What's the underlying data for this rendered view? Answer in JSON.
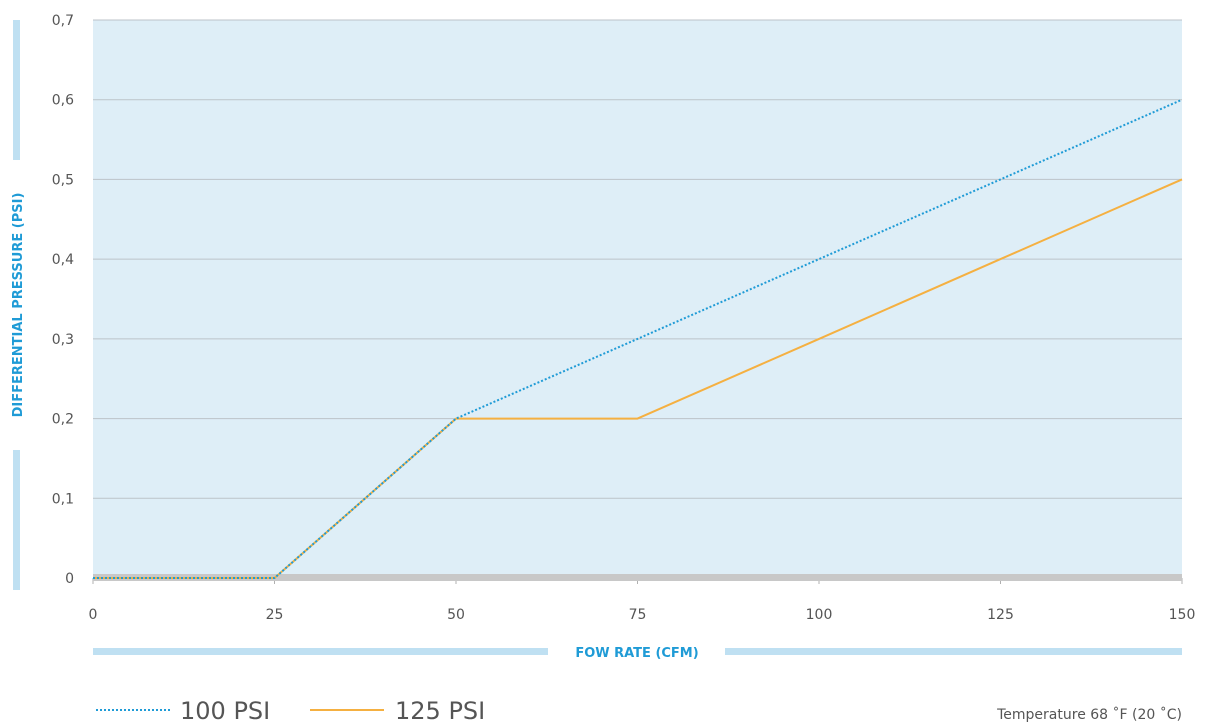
{
  "chart_data": {
    "type": "line",
    "xlabel": "FOW RATE (CFM)",
    "ylabel": "DIFFERENTIAL PRESSURE (PSI)",
    "xlim": [
      0,
      150
    ],
    "ylim": [
      0,
      0.7
    ],
    "x_ticks": [
      "0",
      "25",
      "50",
      "75",
      "100",
      "125",
      "150"
    ],
    "y_ticks": [
      "0",
      "0,1",
      "0,2",
      "0,3",
      "0,4",
      "0,5",
      "0,6",
      "0,7"
    ],
    "grid": true,
    "legend_position": "bottom-left",
    "colors": {
      "plot_background": "#deeef7",
      "grid": "#bcc3c9",
      "accent_bars": "#bfe0f2",
      "baseline": "#c8c8c8",
      "axis_title": "#1f9bd6"
    },
    "series": [
      {
        "name": "100 PSI",
        "color": "#1f9bd6",
        "style": "dotted",
        "x": [
          0,
          25,
          50,
          75,
          100,
          125,
          150
        ],
        "y": [
          0,
          0,
          0.2,
          0.3,
          0.4,
          0.5,
          0.6
        ]
      },
      {
        "name": "125 PSI",
        "color": "#f5b041",
        "style": "solid",
        "x": [
          0,
          25,
          50,
          75,
          100,
          125,
          150
        ],
        "y": [
          0,
          0,
          0.2,
          0.2,
          0.3,
          0.4,
          0.5
        ]
      }
    ],
    "note": "Temperature 68 ˚F (20 ˚C)"
  }
}
